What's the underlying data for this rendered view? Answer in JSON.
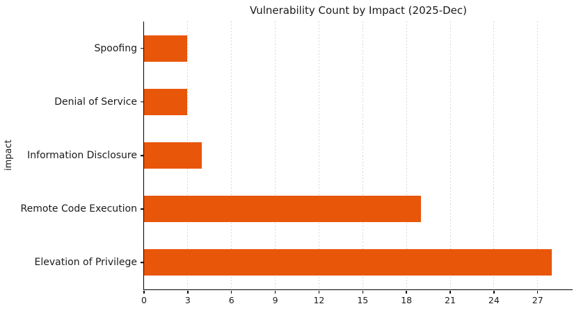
{
  "chart_data": {
    "type": "bar",
    "orientation": "horizontal",
    "title": "Vulnerability Count by Impact (2025-Dec)",
    "xlabel": "",
    "ylabel": "impact",
    "categories": [
      "Spoofing",
      "Denial of Service",
      "Information Disclosure",
      "Remote Code Execution",
      "Elevation of Privilege"
    ],
    "values": [
      3,
      3,
      4,
      19,
      28
    ],
    "xticks": [
      0,
      3,
      6,
      9,
      12,
      15,
      18,
      21,
      24,
      27
    ],
    "xlim": [
      0,
      29.4
    ],
    "grid": "vertical-dotted",
    "legend": "none",
    "spines": "left-bottom-only",
    "bar_color": "#E8560A",
    "grid_color": "#c8c8c8",
    "axis_color": "#000000",
    "text_color": "#1a1a1a",
    "background_color": "#ffffff"
  }
}
